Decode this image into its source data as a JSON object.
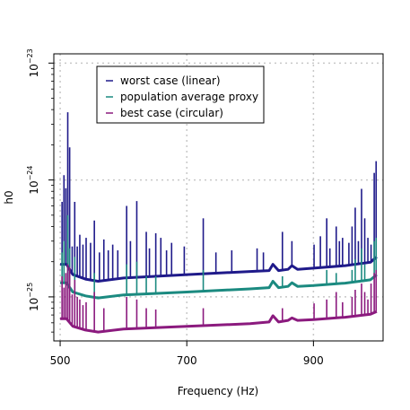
{
  "chart_data": {
    "type": "line",
    "title": "",
    "xlabel": "Frequency (Hz)",
    "ylabel": "h0",
    "y_scale": "log",
    "xlim": [
      490,
      1010
    ],
    "ylim": [
      4.2e-26,
      1.2e-23
    ],
    "x_ticks": [
      500,
      700,
      900
    ],
    "x_tick_labels": [
      "500",
      "700",
      "900"
    ],
    "y_ticks": [
      1e-25,
      1e-24,
      1e-23
    ],
    "y_tick_labels": [
      {
        "base": "10",
        "exp": "−25"
      },
      {
        "base": "10",
        "exp": "−24"
      },
      {
        "base": "10",
        "exp": "−23"
      }
    ],
    "grid": true,
    "legend_position": "top-left",
    "series": [
      {
        "name": "worst case (linear)",
        "color": "#1f1a8a",
        "baseline_x": [
          500,
          510,
          520,
          540,
          560,
          600,
          700,
          800,
          830,
          836,
          845,
          860,
          866,
          875,
          900,
          950,
          990,
          1000
        ],
        "baseline_y": [
          1.9e-25,
          1.9e-25,
          1.55e-25,
          1.42e-25,
          1.36e-25,
          1.45e-25,
          1.55e-25,
          1.65e-25,
          1.68e-25,
          1.9e-25,
          1.68e-25,
          1.72e-25,
          1.85e-25,
          1.72e-25,
          1.76e-25,
          1.85e-25,
          1.98e-25,
          2.2e-25
        ],
        "spikes": [
          {
            "x": 503,
            "y": 6.5e-25
          },
          {
            "x": 506,
            "y": 1.1e-24
          },
          {
            "x": 509,
            "y": 8.5e-25
          },
          {
            "x": 512,
            "y": 3.8e-24
          },
          {
            "x": 515,
            "y": 1.9e-24
          },
          {
            "x": 519,
            "y": 2.7e-25
          },
          {
            "x": 523,
            "y": 6.5e-25
          },
          {
            "x": 527,
            "y": 2.7e-25
          },
          {
            "x": 531,
            "y": 3.4e-25
          },
          {
            "x": 536,
            "y": 2.8e-25
          },
          {
            "x": 541,
            "y": 3.2e-25
          },
          {
            "x": 548,
            "y": 2.9e-25
          },
          {
            "x": 554,
            "y": 4.5e-25
          },
          {
            "x": 562,
            "y": 2.4e-25
          },
          {
            "x": 569,
            "y": 3.1e-25
          },
          {
            "x": 576,
            "y": 2.5e-25
          },
          {
            "x": 583,
            "y": 2.8e-25
          },
          {
            "x": 591,
            "y": 2.5e-25
          },
          {
            "x": 605,
            "y": 6e-25
          },
          {
            "x": 611,
            "y": 3e-25
          },
          {
            "x": 621,
            "y": 6.6e-25
          },
          {
            "x": 636,
            "y": 3.6e-25
          },
          {
            "x": 641,
            "y": 2.6e-25
          },
          {
            "x": 651,
            "y": 3.5e-25
          },
          {
            "x": 659,
            "y": 3.2e-25
          },
          {
            "x": 668,
            "y": 2.5e-25
          },
          {
            "x": 676,
            "y": 2.9e-25
          },
          {
            "x": 696,
            "y": 2.7e-25
          },
          {
            "x": 726,
            "y": 4.7e-25
          },
          {
            "x": 746,
            "y": 2.4e-25
          },
          {
            "x": 771,
            "y": 2.5e-25
          },
          {
            "x": 811,
            "y": 2.6e-25
          },
          {
            "x": 821,
            "y": 2.4e-25
          },
          {
            "x": 851,
            "y": 3.6e-25
          },
          {
            "x": 866,
            "y": 3e-25
          },
          {
            "x": 901,
            "y": 2.8e-25
          },
          {
            "x": 911,
            "y": 3.3e-25
          },
          {
            "x": 921,
            "y": 4.7e-25
          },
          {
            "x": 926,
            "y": 2.6e-25
          },
          {
            "x": 936,
            "y": 4e-25
          },
          {
            "x": 941,
            "y": 3e-25
          },
          {
            "x": 946,
            "y": 3.2e-25
          },
          {
            "x": 956,
            "y": 2.9e-25
          },
          {
            "x": 961,
            "y": 4e-25
          },
          {
            "x": 966,
            "y": 5.8e-25
          },
          {
            "x": 971,
            "y": 3e-25
          },
          {
            "x": 976,
            "y": 8.4e-25
          },
          {
            "x": 981,
            "y": 4.7e-25
          },
          {
            "x": 986,
            "y": 3.2e-25
          },
          {
            "x": 991,
            "y": 2.8e-25
          },
          {
            "x": 996,
            "y": 1.15e-24
          },
          {
            "x": 999,
            "y": 1.45e-24
          }
        ]
      },
      {
        "name": "population average proxy",
        "color": "#1b8a80",
        "baseline_x": [
          500,
          510,
          520,
          540,
          560,
          600,
          700,
          800,
          830,
          836,
          845,
          860,
          866,
          875,
          900,
          950,
          990,
          1000
        ],
        "baseline_y": [
          1.32e-25,
          1.32e-25,
          1.1e-25,
          1.02e-25,
          9.8e-26,
          1.04e-25,
          1.1e-25,
          1.17e-25,
          1.2e-25,
          1.36e-25,
          1.2e-25,
          1.23e-25,
          1.32e-25,
          1.23e-25,
          1.25e-25,
          1.31e-25,
          1.4e-25,
          1.55e-25
        ],
        "spikes": [
          {
            "x": 503,
            "y": 2.4e-25
          },
          {
            "x": 506,
            "y": 3e-25
          },
          {
            "x": 512,
            "y": 5e-25
          },
          {
            "x": 515,
            "y": 2.6e-25
          },
          {
            "x": 523,
            "y": 2.2e-25
          },
          {
            "x": 554,
            "y": 1.6e-25
          },
          {
            "x": 605,
            "y": 1.9e-25
          },
          {
            "x": 621,
            "y": 2e-25
          },
          {
            "x": 636,
            "y": 1.5e-25
          },
          {
            "x": 651,
            "y": 1.5e-25
          },
          {
            "x": 726,
            "y": 1.7e-25
          },
          {
            "x": 851,
            "y": 1.5e-25
          },
          {
            "x": 921,
            "y": 1.7e-25
          },
          {
            "x": 936,
            "y": 1.6e-25
          },
          {
            "x": 961,
            "y": 1.7e-25
          },
          {
            "x": 966,
            "y": 2.1e-25
          },
          {
            "x": 976,
            "y": 2.6e-25
          },
          {
            "x": 981,
            "y": 1.9e-25
          },
          {
            "x": 996,
            "y": 3e-25
          },
          {
            "x": 999,
            "y": 3.2e-25
          }
        ]
      },
      {
        "name": "best case (circular)",
        "color": "#8b1a7e",
        "baseline_x": [
          500,
          510,
          520,
          540,
          560,
          600,
          700,
          800,
          830,
          836,
          845,
          860,
          866,
          875,
          900,
          950,
          990,
          1000
        ],
        "baseline_y": [
          6.5e-26,
          6.5e-26,
          5.6e-26,
          5.2e-26,
          5e-26,
          5.3e-26,
          5.6e-26,
          5.9e-26,
          6.1e-26,
          6.9e-26,
          6.1e-26,
          6.3e-26,
          6.6e-26,
          6.3e-26,
          6.4e-26,
          6.7e-26,
          7.1e-26,
          7.5e-26
        ],
        "spikes": [
          {
            "x": 503,
            "y": 1.5e-25
          },
          {
            "x": 506,
            "y": 1.2e-25
          },
          {
            "x": 509,
            "y": 1.6e-25
          },
          {
            "x": 512,
            "y": 1.9e-25
          },
          {
            "x": 515,
            "y": 1.8e-25
          },
          {
            "x": 519,
            "y": 1.05e-25
          },
          {
            "x": 523,
            "y": 1.4e-25
          },
          {
            "x": 527,
            "y": 1e-25
          },
          {
            "x": 531,
            "y": 9.5e-26
          },
          {
            "x": 536,
            "y": 8.5e-26
          },
          {
            "x": 541,
            "y": 9e-26
          },
          {
            "x": 554,
            "y": 1.1e-25
          },
          {
            "x": 569,
            "y": 8e-26
          },
          {
            "x": 605,
            "y": 1e-25
          },
          {
            "x": 621,
            "y": 9.5e-26
          },
          {
            "x": 636,
            "y": 8e-26
          },
          {
            "x": 651,
            "y": 7.8e-26
          },
          {
            "x": 726,
            "y": 8e-26
          },
          {
            "x": 851,
            "y": 8e-26
          },
          {
            "x": 901,
            "y": 8.8e-26
          },
          {
            "x": 921,
            "y": 9.5e-26
          },
          {
            "x": 936,
            "y": 1.1e-25
          },
          {
            "x": 946,
            "y": 9e-26
          },
          {
            "x": 961,
            "y": 1e-25
          },
          {
            "x": 966,
            "y": 1.15e-25
          },
          {
            "x": 976,
            "y": 1.3e-25
          },
          {
            "x": 981,
            "y": 1.1e-25
          },
          {
            "x": 986,
            "y": 9.5e-26
          },
          {
            "x": 991,
            "y": 1.3e-25
          },
          {
            "x": 996,
            "y": 1.6e-25
          },
          {
            "x": 999,
            "y": 1.7e-25
          }
        ]
      }
    ]
  }
}
